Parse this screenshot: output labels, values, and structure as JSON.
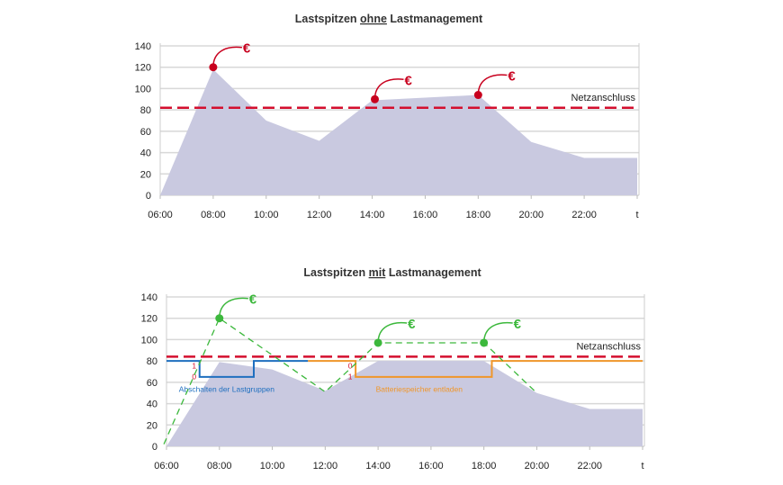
{
  "chart_data": [
    {
      "type": "area",
      "title_parts": [
        "Lastspitzen ",
        "ohne",
        " Lastmanagement"
      ],
      "x_tick_labels": [
        "06:00",
        "08:00",
        "10:00",
        "12:00",
        "14:00",
        "16:00",
        "18:00",
        "20:00",
        "22:00",
        "t"
      ],
      "y_tick_labels": [
        "0",
        "20",
        "40",
        "60",
        "80",
        "100",
        "120",
        "140"
      ],
      "xlim": [
        6,
        24
      ],
      "ylim": [
        0,
        140
      ],
      "grid": true,
      "load": {
        "x": [
          6,
          8,
          10,
          12,
          14,
          18,
          20,
          22,
          24
        ],
        "y": [
          0,
          118,
          70,
          51,
          89,
          94,
          50,
          35,
          35
        ]
      },
      "limit": {
        "label": "Netzanschluss",
        "value": 82
      },
      "peaks": {
        "x": [
          8,
          14.1,
          18
        ],
        "y": [
          120,
          90,
          94
        ],
        "symbol": "€"
      },
      "colors": {
        "area": "#c9c9e0",
        "limit": "#d40f2e",
        "peak": "#c8001e"
      }
    },
    {
      "type": "area",
      "title_parts": [
        "Lastspitzen ",
        "mit",
        " Lastmanagement"
      ],
      "x_tick_labels": [
        "06:00",
        "08:00",
        "10:00",
        "12:00",
        "14:00",
        "16:00",
        "18:00",
        "20:00",
        "22:00",
        "t"
      ],
      "y_tick_labels": [
        "0",
        "20",
        "40",
        "60",
        "80",
        "100",
        "120",
        "140"
      ],
      "xlim": [
        6,
        24
      ],
      "ylim": [
        0,
        140
      ],
      "grid": true,
      "load": {
        "x": [
          6,
          8,
          10,
          12,
          14,
          18,
          20,
          22,
          24
        ],
        "y": [
          0,
          79,
          72,
          52,
          80,
          80,
          50,
          35,
          35
        ]
      },
      "original_load": {
        "x": [
          5.9,
          8,
          12,
          14,
          18,
          20
        ],
        "y": [
          2,
          120,
          51,
          97,
          97,
          50
        ]
      },
      "limit": {
        "label": "Netzanschluss",
        "value": 84
      },
      "peaks": {
        "x": [
          8,
          14,
          18
        ],
        "y": [
          120,
          97,
          97
        ],
        "symbol": "€"
      },
      "load_shedding": {
        "label": "Abschalten der Lastgruppen",
        "x": [
          6,
          7.25,
          7.25,
          9.3,
          9.3,
          11.35
        ],
        "y": [
          80,
          80,
          65,
          65,
          80,
          80
        ],
        "state_labels": [
          "1",
          "0"
        ]
      },
      "battery": {
        "label": "Batteriespeicher entladen",
        "x": [
          11.35,
          13.15,
          13.15,
          18.3,
          18.3,
          24
        ],
        "y": [
          80,
          80,
          65,
          65,
          80,
          80
        ],
        "state_labels": [
          "0",
          "1"
        ]
      },
      "colors": {
        "area": "#c9c9e0",
        "limit": "#d40f2e",
        "peak": "#3cb83c",
        "load_shedding": "#1f6fbf",
        "battery": "#f0962a",
        "state_labels": "#d40f2e"
      }
    }
  ]
}
